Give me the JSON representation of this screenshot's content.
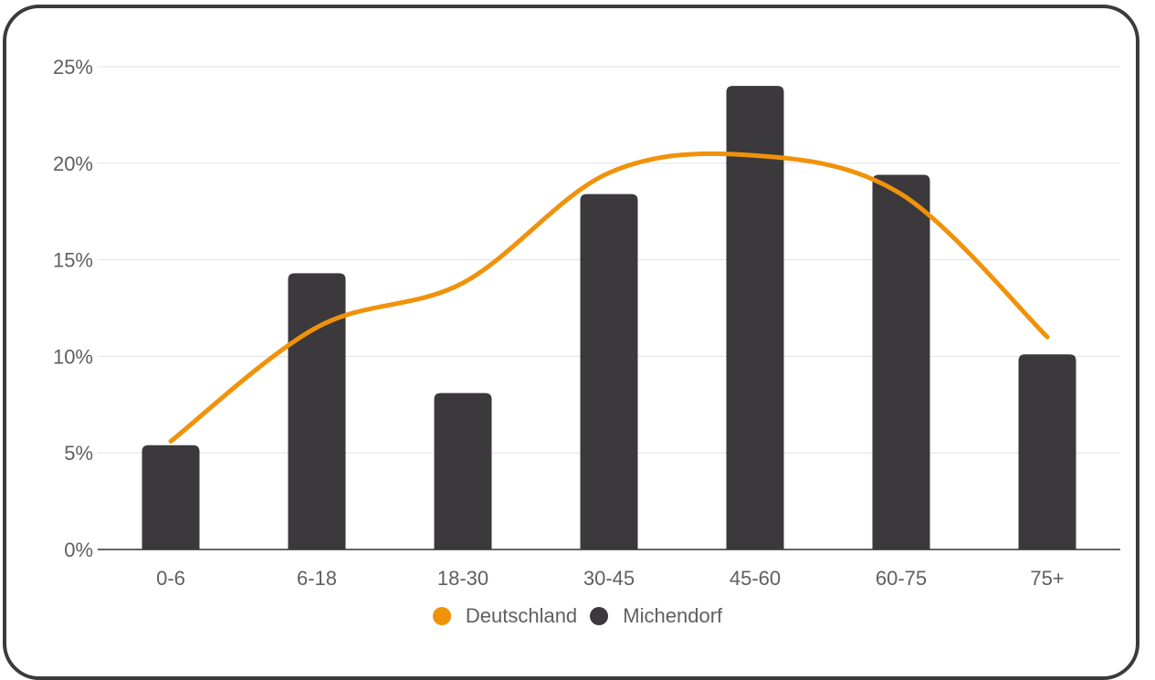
{
  "chart_data": {
    "type": "bar",
    "categories": [
      "0-6",
      "6-18",
      "18-30",
      "30-45",
      "45-60",
      "60-75",
      "75+"
    ],
    "ylim": [
      0,
      25
    ],
    "yticks": [
      0,
      5,
      10,
      15,
      20,
      25
    ],
    "ytick_labels": [
      "0%",
      "5%",
      "10%",
      "15%",
      "20%",
      "25%"
    ],
    "grid": true,
    "legend_position": "bottom",
    "series": [
      {
        "name": "Deutschland",
        "type": "line",
        "color": "#f0920a",
        "values": [
          5.6,
          11.5,
          13.8,
          19.5,
          20.4,
          18.4,
          11.0
        ]
      },
      {
        "name": "Michendorf",
        "type": "bar",
        "color": "#3b393c",
        "values": [
          5.4,
          14.3,
          8.1,
          18.4,
          24.0,
          19.4,
          10.1
        ]
      }
    ],
    "title": "",
    "xlabel": "",
    "ylabel": ""
  }
}
